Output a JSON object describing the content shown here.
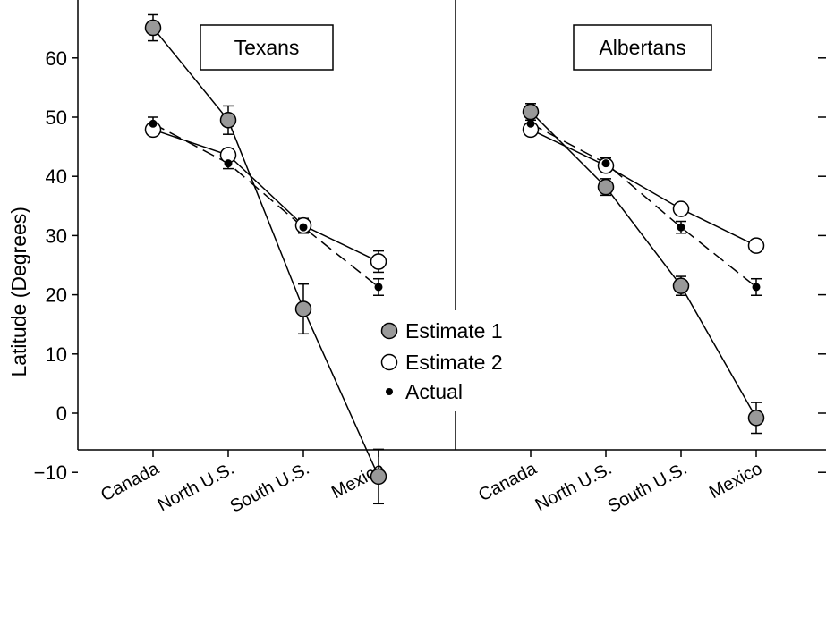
{
  "chart_data": {
    "type": "line",
    "ylabel": "Latitude (Degrees)",
    "ylim": [
      -21,
      70
    ],
    "yticks": [
      60,
      50,
      40,
      30,
      20,
      10,
      0,
      -10
    ],
    "ytick_labels": [
      "60",
      "50",
      "40",
      "30",
      "20",
      "10",
      "0",
      "−10"
    ],
    "categories": [
      "Canada",
      "North U.S.",
      "South U.S.",
      "Mexico"
    ],
    "legend": {
      "position": "center",
      "entries": [
        {
          "label": "Estimate 1",
          "marker": "gray-filled-circle"
        },
        {
          "label": "Estimate 2",
          "marker": "open-circle"
        },
        {
          "label": "Actual",
          "marker": "small-black-dot"
        }
      ]
    },
    "colors": {
      "estimate1_fill": "#999999",
      "estimate2_fill": "#ffffff",
      "actual_fill": "#000000",
      "line": "#000000"
    },
    "panels": [
      {
        "title": "Texans",
        "series": [
          {
            "name": "Estimate 1",
            "values": [
              65.1,
              49.5,
              17.6,
              -10.7
            ],
            "err_low": [
              62.9,
              47.1,
              13.4,
              -15.3
            ],
            "err_high": [
              67.3,
              51.9,
              21.8,
              -6.1
            ]
          },
          {
            "name": "Estimate 2",
            "values": [
              47.9,
              43.6,
              31.7,
              25.6
            ],
            "err_low": [
              47.9,
              43.6,
              30.5,
              23.8
            ],
            "err_high": [
              47.9,
              43.6,
              32.9,
              27.4
            ]
          },
          {
            "name": "Actual",
            "values": [
              48.9,
              42.2,
              31.4,
              21.3
            ],
            "err_low": [
              47.8,
              41.3,
              30.4,
              19.9
            ],
            "err_high": [
              50.0,
              43.1,
              32.4,
              22.7
            ]
          }
        ]
      },
      {
        "title": "Albertans",
        "series": [
          {
            "name": "Estimate 1",
            "values": [
              50.9,
              38.2,
              21.5,
              -0.8
            ],
            "err_low": [
              49.5,
              36.8,
              19.9,
              -3.4
            ],
            "err_high": [
              52.3,
              39.6,
              23.1,
              1.8
            ]
          },
          {
            "name": "Estimate 2",
            "values": [
              47.9,
              41.8,
              34.5,
              28.3
            ],
            "err_low": [
              47.9,
              41.8,
              34.5,
              28.3
            ],
            "err_high": [
              47.9,
              41.8,
              34.5,
              28.3
            ]
          },
          {
            "name": "Actual",
            "values": [
              48.9,
              42.2,
              31.4,
              21.3
            ],
            "err_low": [
              47.8,
              41.3,
              30.4,
              19.9
            ],
            "err_high": [
              50.0,
              43.1,
              32.4,
              22.7
            ]
          }
        ]
      }
    ]
  }
}
